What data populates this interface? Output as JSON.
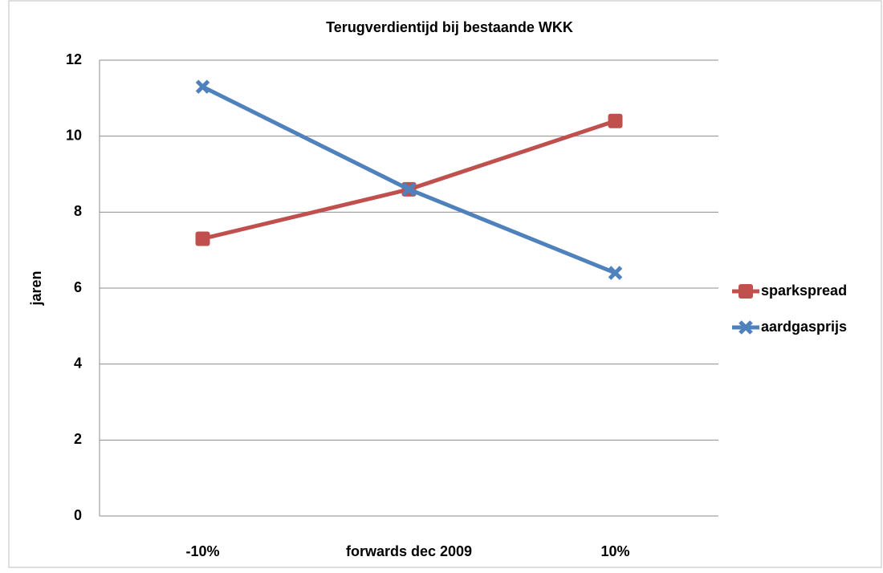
{
  "chart_data": {
    "type": "line",
    "title": "Terugverdientijd bij bestaande WKK",
    "y_label": "jaren",
    "categories": [
      "-10%",
      "forwards dec 2009",
      "10%"
    ],
    "series": [
      {
        "name": "sparkspread",
        "color": "#c0504d",
        "marker": "square",
        "values": [
          7.3,
          8.6,
          10.4
        ]
      },
      {
        "name": "aardgasprijs",
        "color": "#4f81bd",
        "marker": "x",
        "values": [
          11.3,
          8.6,
          6.4
        ]
      }
    ],
    "ylim": [
      0,
      12
    ],
    "yticks": [
      0,
      2,
      4,
      6,
      8,
      10,
      12
    ],
    "grid": true,
    "legend": "right"
  }
}
